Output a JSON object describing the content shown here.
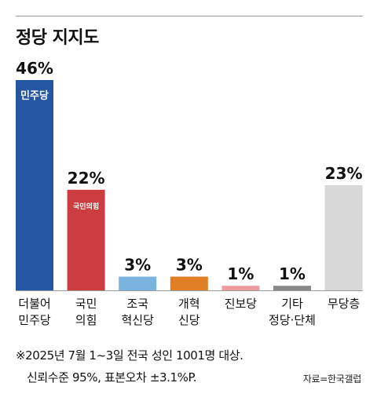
{
  "title": "정당 지지도",
  "chart_data": {
    "type": "bar",
    "categories": [
      [
        "더불어",
        "민주당"
      ],
      [
        "국민",
        "의힘"
      ],
      [
        "조국",
        "혁신당"
      ],
      [
        "개혁",
        "신당"
      ],
      [
        "진보당"
      ],
      [
        "기타",
        "정당·단체"
      ],
      [
        "무당층"
      ]
    ],
    "values": [
      46,
      22,
      3,
      3,
      1,
      1,
      23
    ],
    "value_labels": [
      "46%",
      "22%",
      "3%",
      "3%",
      "1%",
      "1%",
      "23%"
    ],
    "colors": [
      "#2456a4",
      "#cc3d3f",
      "#7ab4de",
      "#e07f24",
      "#ee9a9f",
      "#888888",
      "#d8d8d8"
    ],
    "logos": {
      "0": "민주당",
      "1": "국민의힘"
    },
    "logo_colors": {
      "0": "#ffffff",
      "1": "#ffffff"
    },
    "ylim": [
      0,
      46
    ],
    "grid": false,
    "legend": "none"
  },
  "footnote": {
    "line1": "※2025년 7월 1~3일 전국 성인 1001명 대상.",
    "line2": "신뢰수준 95%, 표본오차 ±3.1%P."
  },
  "source": "자료=한국갤럽"
}
